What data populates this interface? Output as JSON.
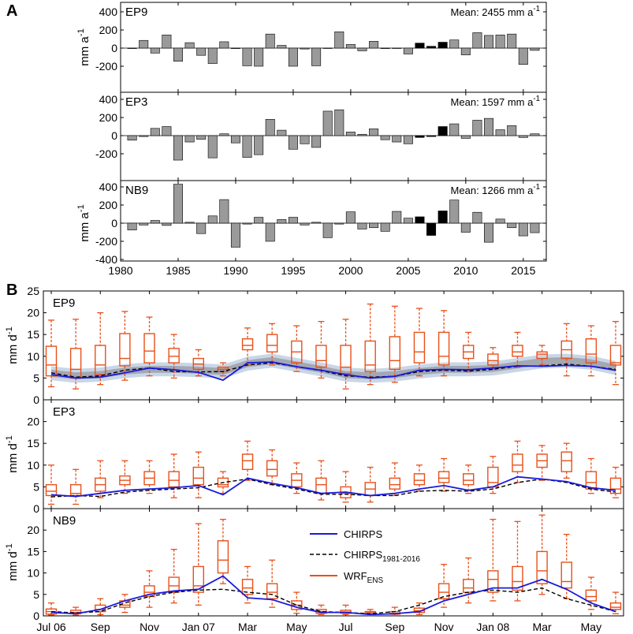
{
  "panel_a": {
    "letter": "A",
    "ylabel_base": "mm a",
    "ylabel_sup": "-1",
    "x_ticks": [
      1980,
      1985,
      1990,
      1995,
      2000,
      2005,
      2010,
      2015
    ],
    "chart_data": [
      {
        "type": "bar",
        "station": "EP9",
        "mean_text": "Mean: 2455 mm a",
        "mean_sup": "-1",
        "years": [
          1981,
          1982,
          1983,
          1984,
          1985,
          1986,
          1987,
          1988,
          1989,
          1990,
          1991,
          1992,
          1993,
          1994,
          1995,
          1996,
          1997,
          1998,
          1999,
          2000,
          2001,
          2002,
          2003,
          2004,
          2005,
          2006,
          2007,
          2008,
          2009,
          2010,
          2011,
          2012,
          2013,
          2014,
          2015,
          2016
        ],
        "values": [
          -5,
          85,
          -55,
          145,
          -145,
          60,
          -80,
          -170,
          70,
          -5,
          -195,
          -200,
          155,
          30,
          -200,
          -10,
          -195,
          0,
          180,
          40,
          -30,
          75,
          -5,
          0,
          -65,
          55,
          20,
          65,
          90,
          -75,
          170,
          140,
          145,
          155,
          -180,
          -25
        ],
        "highlight_years": [
          2006,
          2007,
          2008
        ],
        "ylim": [
          -240,
          450
        ],
        "y_ticks": [
          -200,
          0,
          200,
          400
        ]
      },
      {
        "type": "bar",
        "station": "EP3",
        "mean_text": "Mean: 1597 mm a",
        "mean_sup": "-1",
        "years": [
          1981,
          1982,
          1983,
          1984,
          1985,
          1986,
          1987,
          1988,
          1989,
          1990,
          1991,
          1992,
          1993,
          1994,
          1995,
          1996,
          1997,
          1998,
          1999,
          2000,
          2001,
          2002,
          2003,
          2004,
          2005,
          2006,
          2007,
          2008,
          2009,
          2010,
          2011,
          2012,
          2013,
          2014,
          2015,
          2016
        ],
        "values": [
          -50,
          -10,
          80,
          100,
          -270,
          -70,
          -40,
          -245,
          20,
          -80,
          -240,
          -210,
          180,
          60,
          -150,
          -90,
          -130,
          270,
          285,
          40,
          15,
          75,
          -45,
          -70,
          -90,
          -20,
          -10,
          100,
          130,
          -30,
          170,
          190,
          65,
          110,
          -20,
          20
        ],
        "highlight_years": [
          2006,
          2007,
          2008
        ],
        "ylim": [
          -300,
          450
        ],
        "y_ticks": [
          -200,
          0,
          200,
          400
        ]
      },
      {
        "type": "bar",
        "station": "NB9",
        "mean_text": "Mean: 1266 mm a",
        "mean_sup": "-1",
        "years": [
          1981,
          1982,
          1983,
          1984,
          1985,
          1986,
          1987,
          1988,
          1989,
          1990,
          1991,
          1992,
          1993,
          1994,
          1995,
          1996,
          1997,
          1998,
          1999,
          2000,
          2001,
          2002,
          2003,
          2004,
          2005,
          2006,
          2007,
          2008,
          2009,
          2010,
          2011,
          2012,
          2013,
          2014,
          2015,
          2016
        ],
        "values": [
          -75,
          -20,
          30,
          -25,
          430,
          10,
          -115,
          80,
          260,
          -265,
          -10,
          65,
          -200,
          40,
          65,
          -20,
          10,
          -160,
          -10,
          125,
          -65,
          -50,
          -90,
          130,
          55,
          70,
          -135,
          135,
          255,
          -100,
          120,
          -210,
          45,
          -50,
          -140,
          -105
        ],
        "highlight_years": [
          2006,
          2007,
          2008
        ],
        "ylim": [
          -400,
          450
        ],
        "y_ticks": [
          -400,
          -200,
          0,
          200,
          400
        ]
      }
    ]
  },
  "panel_b": {
    "letter": "B",
    "ylabel_base": "mm d",
    "ylabel_sup": "-1",
    "x_ticks": [
      "Jul 06",
      "Sep",
      "Nov",
      "Jan 07",
      "Mar",
      "May",
      "Jul",
      "Sep",
      "Nov",
      "Jan 08",
      "Mar",
      "May"
    ],
    "legend": [
      {
        "label": "CHIRPS",
        "sub": "",
        "style": "solid",
        "color": "#1a1adb"
      },
      {
        "label": "CHIRPS",
        "sub": "1981-2016",
        "style": "dashed",
        "color": "#000000"
      },
      {
        "label": "WRF",
        "sub": "ENS",
        "style": "box",
        "color": "#e8501a"
      }
    ],
    "chart_data": [
      {
        "type": "box",
        "station": "EP9",
        "ylim": [
          0,
          25
        ],
        "y_ticks": [
          0,
          5,
          10,
          15,
          20,
          25
        ],
        "months": 24,
        "chirps": [
          5.8,
          5.0,
          5.2,
          6.2,
          7.3,
          6.9,
          6.3,
          4.5,
          8.5,
          8.7,
          7.6,
          6.8,
          5.8,
          5.0,
          5.4,
          6.8,
          7.0,
          6.9,
          7.3,
          7.8,
          7.7,
          7.9,
          7.7,
          6.8
        ],
        "chirps_clim": [
          6.2,
          5.2,
          5.5,
          6.8,
          7.3,
          6.5,
          6.4,
          6.5,
          8.0,
          8.5,
          7.6,
          6.7,
          5.5,
          5.2,
          5.4,
          6.5,
          6.8,
          6.6,
          7.0,
          7.7,
          7.8,
          8.2,
          7.7,
          7.0
        ],
        "shade_mid": [
          6.1,
          5.5,
          5.8,
          6.6,
          7.0,
          7.0,
          6.8,
          6.5,
          8.3,
          9.0,
          8.0,
          7.0,
          5.8,
          5.5,
          5.8,
          6.5,
          7.0,
          7.0,
          7.2,
          8.0,
          8.8,
          9.0,
          8.5,
          7.3
        ],
        "boxes": [
          {
            "min": 3.0,
            "q1": 5.5,
            "med": 8.0,
            "q3": 12.3,
            "max": 18.3
          },
          {
            "min": 2.5,
            "q1": 5.0,
            "med": 7.0,
            "q3": 11.8,
            "max": 18.5
          },
          {
            "min": 3.5,
            "q1": 5.8,
            "med": 8.0,
            "q3": 12.5,
            "max": 20.0
          },
          {
            "min": 4.5,
            "q1": 7.8,
            "med": 9.5,
            "q3": 15.2,
            "max": 20.3
          },
          {
            "min": 5.5,
            "q1": 8.5,
            "med": 11.2,
            "q3": 15.2,
            "max": 19.0
          },
          {
            "min": 5.0,
            "q1": 8.5,
            "med": 10.0,
            "q3": 11.8,
            "max": 15.0
          },
          {
            "min": 5.5,
            "q1": 7.0,
            "med": 8.2,
            "q3": 9.5,
            "max": 11.5
          },
          {
            "min": 5.5,
            "q1": 6.5,
            "med": 7.0,
            "q3": 7.5,
            "max": 8.5
          },
          {
            "min": 8.0,
            "q1": 11.5,
            "med": 12.5,
            "q3": 14.0,
            "max": 16.5
          },
          {
            "min": 8.0,
            "q1": 11.0,
            "med": 12.5,
            "q3": 15.0,
            "max": 17.5
          },
          {
            "min": 6.5,
            "q1": 8.5,
            "med": 11.0,
            "q3": 13.5,
            "max": 17.0
          },
          {
            "min": 5.0,
            "q1": 7.5,
            "med": 9.0,
            "q3": 12.5,
            "max": 18.0
          },
          {
            "min": 2.5,
            "q1": 6.0,
            "med": 7.5,
            "q3": 12.5,
            "max": 18.5
          },
          {
            "min": 3.5,
            "q1": 6.5,
            "med": 8.0,
            "q3": 13.5,
            "max": 22.0
          },
          {
            "min": 4.0,
            "q1": 7.0,
            "med": 9.0,
            "q3": 14.5,
            "max": 21.5
          },
          {
            "min": 5.5,
            "q1": 8.5,
            "med": 11.0,
            "q3": 15.5,
            "max": 21.0
          },
          {
            "min": 5.5,
            "q1": 8.0,
            "med": 10.0,
            "q3": 15.5,
            "max": 20.5
          },
          {
            "min": 6.5,
            "q1": 9.5,
            "med": 11.0,
            "q3": 12.5,
            "max": 15.5
          },
          {
            "min": 7.0,
            "q1": 8.0,
            "med": 9.0,
            "q3": 10.5,
            "max": 12.0
          },
          {
            "min": 7.5,
            "q1": 10.0,
            "med": 11.0,
            "q3": 12.5,
            "max": 15.5
          },
          {
            "min": 8.0,
            "q1": 9.5,
            "med": 10.5,
            "q3": 11.0,
            "max": 12.5
          },
          {
            "min": 5.5,
            "q1": 9.5,
            "med": 11.5,
            "q3": 13.5,
            "max": 17.5
          },
          {
            "min": 5.5,
            "q1": 8.5,
            "med": 10.5,
            "q3": 14.0,
            "max": 17.0
          },
          {
            "min": 3.5,
            "q1": 8.0,
            "med": 8.5,
            "q3": 12.5,
            "max": 18.0
          }
        ]
      },
      {
        "type": "box",
        "station": "EP3",
        "ylim": [
          0,
          25
        ],
        "y_ticks": [
          0,
          5,
          10,
          15,
          20,
          25
        ],
        "months": 24,
        "chirps": [
          3.2,
          2.8,
          3.5,
          4.2,
          4.5,
          4.8,
          5.3,
          3.2,
          7.0,
          5.8,
          4.8,
          3.5,
          3.8,
          3.0,
          3.5,
          4.5,
          5.3,
          4.2,
          5.0,
          7.3,
          6.8,
          6.2,
          4.8,
          4.2
        ],
        "chirps_clim": [
          2.7,
          3.0,
          2.8,
          3.8,
          4.2,
          4.5,
          4.8,
          6.0,
          6.8,
          5.5,
          4.5,
          3.3,
          3.3,
          3.0,
          3.0,
          4.0,
          4.2,
          4.0,
          4.5,
          6.0,
          6.8,
          6.0,
          4.5,
          3.8
        ],
        "shade_mid": null,
        "boxes": [
          {
            "min": 1.0,
            "q1": 3.0,
            "med": 4.0,
            "q3": 5.5,
            "max": 10.0
          },
          {
            "min": 1.0,
            "q1": 3.0,
            "med": 3.5,
            "q3": 5.5,
            "max": 9.0
          },
          {
            "min": 2.5,
            "q1": 4.0,
            "med": 5.5,
            "q3": 7.0,
            "max": 11.0
          },
          {
            "min": 3.5,
            "q1": 5.5,
            "med": 6.5,
            "q3": 7.5,
            "max": 11.0
          },
          {
            "min": 3.5,
            "q1": 5.5,
            "med": 7.0,
            "q3": 8.5,
            "max": 11.0
          },
          {
            "min": 2.5,
            "q1": 5.0,
            "med": 6.5,
            "q3": 8.5,
            "max": 12.5
          },
          {
            "min": 2.5,
            "q1": 5.5,
            "med": 7.0,
            "q3": 9.5,
            "max": 13.0
          },
          {
            "min": 3.5,
            "q1": 5.0,
            "med": 5.5,
            "q3": 7.0,
            "max": 8.5
          },
          {
            "min": 6.5,
            "q1": 9.0,
            "med": 11.0,
            "q3": 12.5,
            "max": 15.5
          },
          {
            "min": 5.5,
            "q1": 7.5,
            "med": 9.0,
            "q3": 11.0,
            "max": 13.5
          },
          {
            "min": 3.5,
            "q1": 5.0,
            "med": 6.5,
            "q3": 8.0,
            "max": 10.5
          },
          {
            "min": 2.0,
            "q1": 3.5,
            "med": 5.5,
            "q3": 7.0,
            "max": 11.0
          },
          {
            "min": 1.5,
            "q1": 2.5,
            "med": 3.5,
            "q3": 5.0,
            "max": 8.5
          },
          {
            "min": 1.5,
            "q1": 3.0,
            "med": 4.5,
            "q3": 6.0,
            "max": 9.5
          },
          {
            "min": 3.0,
            "q1": 4.5,
            "med": 5.5,
            "q3": 7.0,
            "max": 10.5
          },
          {
            "min": 4.0,
            "q1": 5.5,
            "med": 6.5,
            "q3": 8.0,
            "max": 10.0
          },
          {
            "min": 4.0,
            "q1": 6.0,
            "med": 7.0,
            "q3": 8.5,
            "max": 11.5
          },
          {
            "min": 3.5,
            "q1": 5.5,
            "med": 6.5,
            "q3": 8.0,
            "max": 10.0
          },
          {
            "min": 3.5,
            "q1": 5.0,
            "med": 6.0,
            "q3": 9.5,
            "max": 12.0
          },
          {
            "min": 6.0,
            "q1": 8.5,
            "med": 10.0,
            "q3": 12.5,
            "max": 15.5
          },
          {
            "min": 6.5,
            "q1": 9.5,
            "med": 11.0,
            "q3": 12.5,
            "max": 14.5
          },
          {
            "min": 7.0,
            "q1": 8.5,
            "med": 11.0,
            "q3": 13.0,
            "max": 15.0
          },
          {
            "min": 3.5,
            "q1": 4.5,
            "med": 6.0,
            "q3": 8.5,
            "max": 11.5
          },
          {
            "min": 2.5,
            "q1": 3.5,
            "med": 4.5,
            "q3": 7.0,
            "max": 9.5
          }
        ]
      },
      {
        "type": "box",
        "station": "NB9",
        "ylim": [
          0,
          25
        ],
        "y_ticks": [
          0,
          5,
          10,
          15,
          20,
          25
        ],
        "months": 24,
        "chirps": [
          0.8,
          0.5,
          1.5,
          3.5,
          5.0,
          5.8,
          6.2,
          9.3,
          4.2,
          3.8,
          2.0,
          0.8,
          0.8,
          0.3,
          0.5,
          1.0,
          3.5,
          5.0,
          6.5,
          6.5,
          8.5,
          6.2,
          3.0,
          1.0
        ],
        "chirps_clim": [
          1.0,
          0.7,
          1.0,
          3.0,
          4.5,
          5.5,
          6.0,
          6.2,
          5.5,
          5.0,
          2.5,
          1.0,
          0.8,
          0.5,
          1.0,
          2.5,
          4.5,
          5.5,
          6.0,
          5.5,
          6.5,
          4.0,
          2.5,
          1.0
        ],
        "shade_mid": null,
        "boxes": [
          {
            "min": 0.2,
            "q1": 0.4,
            "med": 1.0,
            "q3": 1.6,
            "max": 3.0
          },
          {
            "min": 0.2,
            "q1": 0.5,
            "med": 0.8,
            "q3": 1.3,
            "max": 2.0
          },
          {
            "min": 0.3,
            "q1": 1.0,
            "med": 1.5,
            "q3": 2.5,
            "max": 4.0
          },
          {
            "min": 0.8,
            "q1": 2.0,
            "med": 2.5,
            "q3": 3.5,
            "max": 5.0
          },
          {
            "min": 2.0,
            "q1": 4.5,
            "med": 5.5,
            "q3": 7.0,
            "max": 10.5
          },
          {
            "min": 3.0,
            "q1": 5.5,
            "med": 7.0,
            "q3": 9.0,
            "max": 15.5
          },
          {
            "min": 2.5,
            "q1": 5.5,
            "med": 7.0,
            "q3": 11.5,
            "max": 21.5
          },
          {
            "min": 7.5,
            "q1": 10.0,
            "med": 13.0,
            "q3": 17.5,
            "max": 22.5
          },
          {
            "min": 3.0,
            "q1": 5.0,
            "med": 6.5,
            "q3": 8.5,
            "max": 11.5
          },
          {
            "min": 2.0,
            "q1": 4.0,
            "med": 5.5,
            "q3": 7.5,
            "max": 13.0
          },
          {
            "min": 0.6,
            "q1": 1.5,
            "med": 2.5,
            "q3": 3.5,
            "max": 5.5
          },
          {
            "min": 0.3,
            "q1": 0.6,
            "med": 1.0,
            "q3": 1.5,
            "max": 2.5
          },
          {
            "min": 0.3,
            "q1": 0.6,
            "med": 0.9,
            "q3": 1.3,
            "max": 2.5
          },
          {
            "min": 0.1,
            "q1": 0.4,
            "med": 0.7,
            "q3": 1.0,
            "max": 1.5
          },
          {
            "min": 0.1,
            "q1": 0.4,
            "med": 0.6,
            "q3": 1.0,
            "max": 2.0
          },
          {
            "min": 0.3,
            "q1": 0.8,
            "med": 1.2,
            "q3": 1.8,
            "max": 3.0
          },
          {
            "min": 2.0,
            "q1": 4.0,
            "med": 5.5,
            "q3": 7.5,
            "max": 12.0
          },
          {
            "min": 3.0,
            "q1": 5.5,
            "med": 6.5,
            "q3": 8.5,
            "max": 13.5
          },
          {
            "min": 3.5,
            "q1": 5.5,
            "med": 8.5,
            "q3": 10.5,
            "max": 22.5
          },
          {
            "min": 3.5,
            "q1": 6.0,
            "med": 8.0,
            "q3": 11.5,
            "max": 22.0
          },
          {
            "min": 5.0,
            "q1": 7.5,
            "med": 10.5,
            "q3": 15.0,
            "max": 23.5
          },
          {
            "min": 4.0,
            "q1": 6.5,
            "med": 8.0,
            "q3": 12.5,
            "max": 19.0
          },
          {
            "min": 1.5,
            "q1": 3.5,
            "med": 4.5,
            "q3": 6.0,
            "max": 9.0
          },
          {
            "min": 0.5,
            "q1": 1.5,
            "med": 2.0,
            "q3": 3.0,
            "max": 5.5
          }
        ]
      }
    ]
  },
  "colors": {
    "bar": "#9a9a9a",
    "bar_highlight": "#000000",
    "chirps": "#1a1adb",
    "clim": "#000000",
    "box": "#e8501a",
    "shade_outer": "#c3d2e4",
    "shade_inner": "#9ea3ab"
  }
}
